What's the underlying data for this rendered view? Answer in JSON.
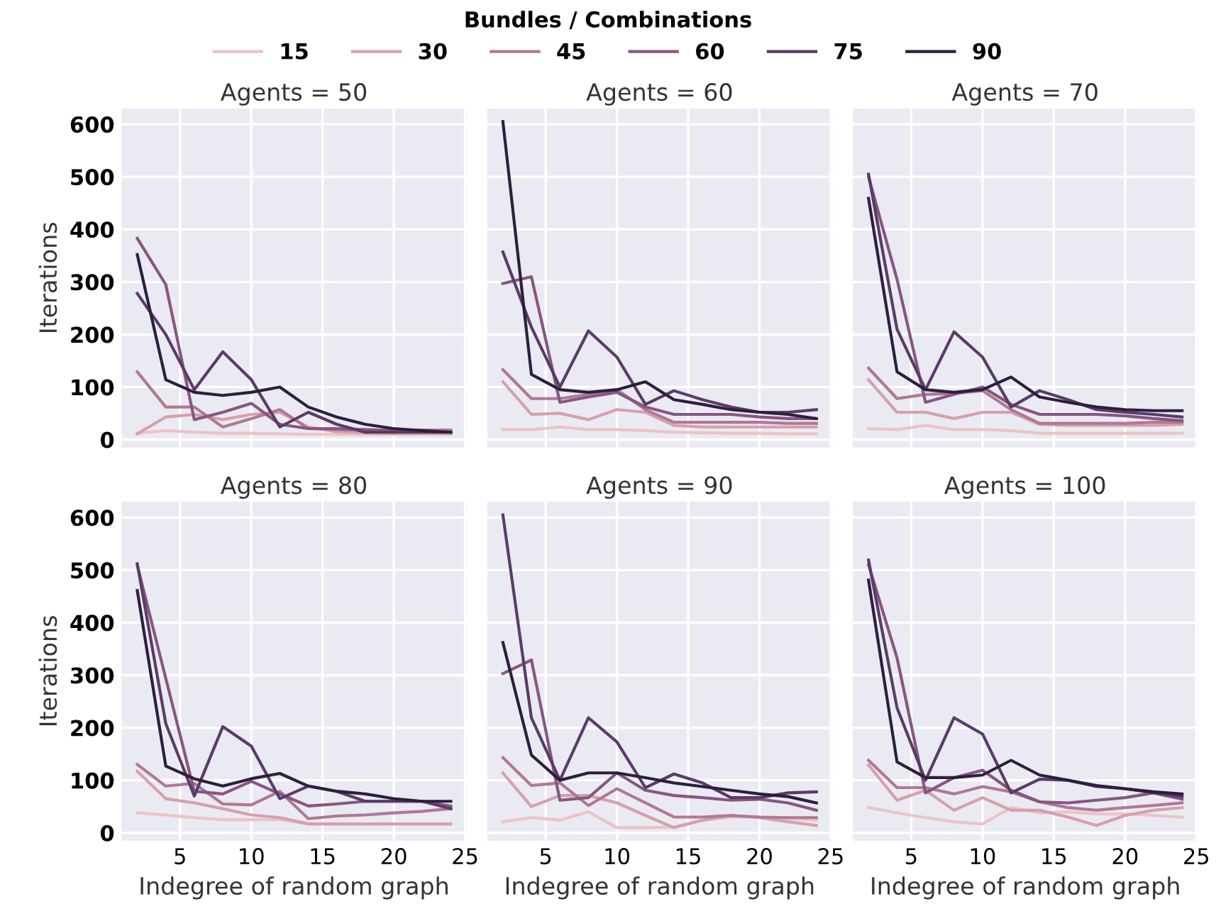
{
  "chart_data": [
    {
      "type": "line",
      "title": "Agents = 50",
      "ylabel": "Iterations",
      "legend_title": "Bundles / Combinations",
      "legend": "top",
      "grid": true,
      "tick_labels": "y",
      "x": [
        2,
        4,
        6,
        8,
        10,
        12,
        14,
        16,
        18,
        20,
        22,
        24
      ],
      "xlim": [
        0.9,
        25.1
      ],
      "xticks": [
        5,
        10,
        15,
        20,
        25
      ],
      "ylim": [
        -15,
        630
      ],
      "yticks": [
        0,
        100,
        200,
        300,
        400,
        500,
        600
      ],
      "series": [
        {
          "name": "15",
          "color": "#ebc4c5",
          "values": [
            12,
            17,
            14,
            12,
            12,
            11,
            10,
            10,
            10,
            10,
            10,
            10
          ]
        },
        {
          "name": "30",
          "color": "#d6a0ab",
          "values": [
            11,
            43,
            48,
            38,
            48,
            52,
            24,
            15,
            13,
            12,
            12,
            12
          ]
        },
        {
          "name": "45",
          "color": "#b07895",
          "values": [
            129,
            62,
            62,
            24,
            40,
            57,
            21,
            19,
            18,
            18,
            18,
            18
          ]
        },
        {
          "name": "60",
          "color": "#875680",
          "values": [
            383,
            295,
            38,
            52,
            69,
            29,
            21,
            21,
            19,
            17,
            15,
            14
          ]
        },
        {
          "name": "75",
          "color": "#593c67",
          "values": [
            278,
            200,
            95,
            167,
            114,
            24,
            52,
            29,
            14,
            14,
            14,
            14
          ]
        },
        {
          "name": "90",
          "color": "#2c1f3e",
          "values": [
            352,
            114,
            90,
            84,
            90,
            100,
            62,
            43,
            29,
            21,
            17,
            14
          ]
        }
      ]
    },
    {
      "type": "line",
      "title": "Agents = 60",
      "grid": true,
      "tick_labels": false,
      "x": [
        2,
        4,
        6,
        8,
        10,
        12,
        14,
        16,
        18,
        20,
        22,
        24
      ],
      "xlim": [
        0.9,
        25.1
      ],
      "xticks": [
        5,
        10,
        15,
        20,
        25
      ],
      "ylim": [
        -15,
        630
      ],
      "yticks": [
        0,
        100,
        200,
        300,
        400,
        500,
        600
      ],
      "series": [
        {
          "color": "#ebc4c5",
          "values": [
            19,
            19,
            24,
            19,
            19,
            17,
            14,
            13,
            12,
            12,
            11,
            11
          ]
        },
        {
          "color": "#d6a0ab",
          "values": [
            110,
            48,
            50,
            38,
            57,
            52,
            27,
            24,
            24,
            24,
            24,
            24
          ]
        },
        {
          "color": "#b07895",
          "values": [
            133,
            78,
            78,
            86,
            95,
            57,
            33,
            33,
            33,
            33,
            31,
            31
          ]
        },
        {
          "color": "#875680",
          "values": [
            297,
            310,
            71,
            81,
            90,
            62,
            48,
            48,
            48,
            43,
            40,
            40
          ]
        },
        {
          "color": "#593c67",
          "values": [
            357,
            214,
            100,
            207,
            157,
            67,
            93,
            76,
            62,
            52,
            52,
            57
          ]
        },
        {
          "color": "#2c1f3e",
          "values": [
            605,
            124,
            95,
            90,
            95,
            110,
            76,
            67,
            57,
            52,
            48,
            40
          ]
        }
      ]
    },
    {
      "type": "line",
      "title": "Agents = 70",
      "grid": true,
      "tick_labels": false,
      "x": [
        2,
        4,
        6,
        8,
        10,
        12,
        14,
        16,
        18,
        20,
        22,
        24
      ],
      "xlim": [
        0.9,
        25.1
      ],
      "xticks": [
        5,
        10,
        15,
        20,
        25
      ],
      "ylim": [
        -15,
        630
      ],
      "yticks": [
        0,
        100,
        200,
        300,
        400,
        500,
        600
      ],
      "series": [
        {
          "color": "#ebc4c5",
          "values": [
            21,
            19,
            27,
            19,
            19,
            17,
            12,
            12,
            12,
            12,
            12,
            12
          ]
        },
        {
          "color": "#d6a0ab",
          "values": [
            114,
            52,
            52,
            40,
            52,
            52,
            29,
            27,
            27,
            27,
            27,
            29
          ]
        },
        {
          "color": "#b07895",
          "values": [
            136,
            78,
            86,
            88,
            93,
            57,
            31,
            31,
            31,
            31,
            33,
            33
          ]
        },
        {
          "color": "#875680",
          "values": [
            500,
            305,
            71,
            86,
            100,
            67,
            48,
            48,
            48,
            45,
            40,
            36
          ]
        },
        {
          "color": "#593c67",
          "values": [
            505,
            210,
            95,
            205,
            157,
            62,
            93,
            76,
            57,
            52,
            48,
            43
          ]
        },
        {
          "color": "#2c1f3e",
          "values": [
            459,
            129,
            95,
            90,
            95,
            119,
            81,
            71,
            62,
            57,
            55,
            55
          ]
        }
      ]
    },
    {
      "type": "line",
      "title": "Agents = 80",
      "xlabel": "Indegree of random graph",
      "ylabel": "Iterations",
      "grid": true,
      "x": [
        2,
        4,
        6,
        8,
        10,
        12,
        14,
        16,
        18,
        20,
        22,
        24
      ],
      "xlim": [
        0.9,
        25.1
      ],
      "xticks": [
        5,
        10,
        15,
        20,
        25
      ],
      "ylim": [
        -15,
        630
      ],
      "yticks": [
        0,
        100,
        200,
        300,
        400,
        500,
        600
      ],
      "series": [
        {
          "color": "#ebc4c5",
          "values": [
            38,
            34,
            29,
            25,
            25,
            25,
            17,
            17,
            17,
            17,
            17,
            17
          ]
        },
        {
          "color": "#d6a0ab",
          "values": [
            117,
            65,
            57,
            46,
            34,
            29,
            17,
            17,
            17,
            17,
            17,
            17
          ]
        },
        {
          "color": "#b07895",
          "values": [
            130,
            89,
            94,
            55,
            53,
            79,
            27,
            32,
            34,
            38,
            41,
            46
          ]
        },
        {
          "color": "#875680",
          "values": [
            509,
            294,
            79,
            74,
            98,
            74,
            51,
            55,
            60,
            60,
            60,
            51
          ]
        },
        {
          "color": "#593c67",
          "values": [
            512,
            208,
            70,
            202,
            165,
            65,
            89,
            79,
            60,
            60,
            60,
            46
          ]
        },
        {
          "color": "#2c1f3e",
          "values": [
            461,
            127,
            103,
            89,
            103,
            113,
            89,
            79,
            74,
            65,
            60,
            60
          ]
        }
      ]
    },
    {
      "type": "line",
      "title": "Agents = 90",
      "xlabel": "Indegree of random graph",
      "grid": true,
      "tick_labels": "x",
      "x": [
        2,
        4,
        6,
        8,
        10,
        12,
        14,
        16,
        18,
        20,
        22,
        24
      ],
      "xlim": [
        0.9,
        25.1
      ],
      "xticks": [
        5,
        10,
        15,
        20,
        25
      ],
      "ylim": [
        -15,
        630
      ],
      "yticks": [
        0,
        100,
        200,
        300,
        400,
        500,
        600
      ],
      "series": [
        {
          "color": "#ebc4c5",
          "values": [
            21,
            29,
            24,
            40,
            10,
            10,
            11,
            24,
            30,
            30,
            27,
            24
          ]
        },
        {
          "color": "#d6a0ab",
          "values": [
            114,
            50,
            71,
            71,
            57,
            33,
            10,
            24,
            33,
            29,
            21,
            14
          ]
        },
        {
          "color": "#b07895",
          "values": [
            143,
            90,
            95,
            52,
            84,
            57,
            30,
            30,
            33,
            30,
            29,
            29
          ]
        },
        {
          "color": "#875680",
          "values": [
            303,
            329,
            62,
            67,
            114,
            81,
            71,
            67,
            62,
            64,
            57,
            43
          ]
        },
        {
          "color": "#593c67",
          "values": [
            605,
            219,
            100,
            219,
            173,
            86,
            112,
            95,
            67,
            67,
            76,
            78
          ]
        },
        {
          "color": "#2c1f3e",
          "values": [
            362,
            148,
            100,
            114,
            114,
            105,
            95,
            88,
            81,
            74,
            69,
            57
          ]
        }
      ]
    },
    {
      "type": "line",
      "title": "Agents = 100",
      "xlabel": "Indegree of random graph",
      "grid": true,
      "tick_labels": "x",
      "x": [
        2,
        4,
        6,
        8,
        10,
        12,
        14,
        16,
        18,
        20,
        22,
        24
      ],
      "xlim": [
        0.9,
        25.1
      ],
      "xticks": [
        5,
        10,
        15,
        20,
        25
      ],
      "ylim": [
        -15,
        630
      ],
      "yticks": [
        0,
        100,
        200,
        300,
        400,
        500,
        600
      ],
      "series": [
        {
          "color": "#ebc4c5",
          "values": [
            48,
            38,
            29,
            21,
            17,
            48,
            38,
            40,
            36,
            36,
            33,
            30
          ]
        },
        {
          "color": "#d6a0ab",
          "values": [
            129,
            62,
            81,
            43,
            67,
            43,
            43,
            30,
            14,
            33,
            43,
            48
          ]
        },
        {
          "color": "#b07895",
          "values": [
            138,
            86,
            86,
            74,
            88,
            78,
            59,
            48,
            43,
            48,
            52,
            57
          ]
        },
        {
          "color": "#875680",
          "values": [
            510,
            333,
            76,
            105,
            119,
            81,
            59,
            57,
            62,
            67,
            76,
            64
          ]
        },
        {
          "color": "#593c67",
          "values": [
            519,
            238,
            100,
            219,
            188,
            76,
            102,
            100,
            88,
            84,
            76,
            69
          ]
        },
        {
          "color": "#2c1f3e",
          "values": [
            481,
            135,
            105,
            105,
            110,
            138,
            110,
            100,
            90,
            84,
            78,
            74
          ]
        }
      ]
    }
  ]
}
